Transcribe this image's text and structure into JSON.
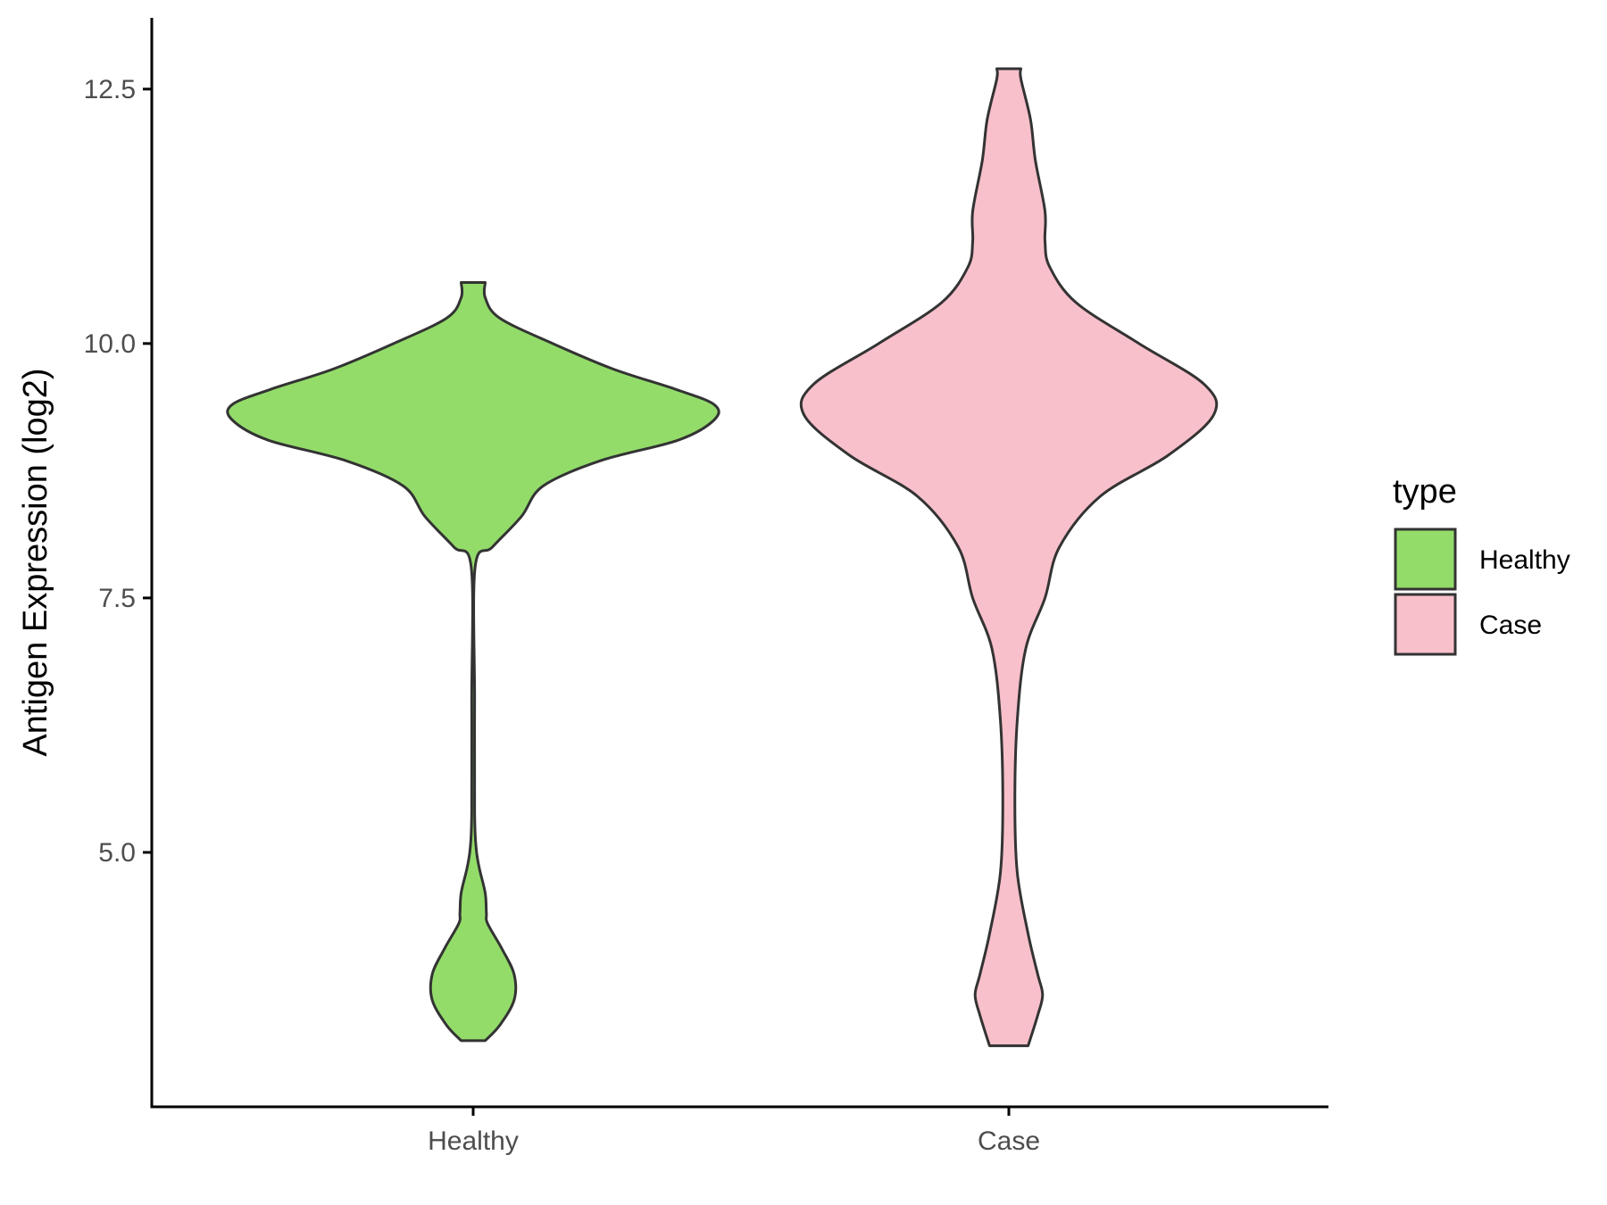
{
  "chart_data": {
    "type": "violin",
    "title": "",
    "xlabel": "",
    "ylabel": "Antigen Expression (log2)",
    "categories": [
      "Healthy",
      "Case"
    ],
    "ylim": [
      2.5,
      13.2
    ],
    "yticks": [
      5.0,
      7.5,
      10.0,
      12.5
    ],
    "ytick_labels": [
      "5.0",
      "7.5",
      "10.0",
      "12.5"
    ],
    "grid": false,
    "legend": {
      "title": "type",
      "position": "right",
      "entries": [
        {
          "label": "Healthy",
          "color": "#93dc6a"
        },
        {
          "label": "Case",
          "color": "#f8c0cb"
        }
      ]
    },
    "series": [
      {
        "category": "Healthy",
        "color": "#93dc6a",
        "density_profile": [
          [
            3.15,
            0.05
          ],
          [
            3.3,
            0.11
          ],
          [
            3.55,
            0.17
          ],
          [
            3.8,
            0.17
          ],
          [
            4.05,
            0.12
          ],
          [
            4.3,
            0.06
          ],
          [
            4.4,
            0.055
          ],
          [
            4.6,
            0.05
          ],
          [
            4.85,
            0.025
          ],
          [
            5.05,
            0.012
          ],
          [
            5.4,
            0.006
          ],
          [
            6.5,
            0.006
          ],
          [
            7.8,
            0.008
          ],
          [
            8.0,
            0.08
          ],
          [
            8.3,
            0.2
          ],
          [
            8.6,
            0.29
          ],
          [
            8.85,
            0.53
          ],
          [
            9.05,
            0.85
          ],
          [
            9.25,
            1.0
          ],
          [
            9.4,
            1.0
          ],
          [
            9.55,
            0.84
          ],
          [
            9.75,
            0.58
          ],
          [
            10.0,
            0.33
          ],
          [
            10.25,
            0.11
          ],
          [
            10.45,
            0.05
          ],
          [
            10.6,
            0.05
          ]
        ]
      },
      {
        "category": "Case",
        "color": "#f8c0cb",
        "density_profile": [
          [
            3.1,
            0.08
          ],
          [
            3.4,
            0.12
          ],
          [
            3.6,
            0.14
          ],
          [
            3.8,
            0.12
          ],
          [
            4.2,
            0.08
          ],
          [
            4.8,
            0.035
          ],
          [
            5.5,
            0.025
          ],
          [
            6.3,
            0.035
          ],
          [
            7.0,
            0.07
          ],
          [
            7.5,
            0.15
          ],
          [
            8.0,
            0.21
          ],
          [
            8.5,
            0.38
          ],
          [
            8.9,
            0.66
          ],
          [
            9.3,
            0.85
          ],
          [
            9.6,
            0.81
          ],
          [
            10.0,
            0.54
          ],
          [
            10.4,
            0.28
          ],
          [
            10.75,
            0.17
          ],
          [
            11.0,
            0.15
          ],
          [
            11.3,
            0.15
          ],
          [
            11.8,
            0.11
          ],
          [
            12.2,
            0.09
          ],
          [
            12.6,
            0.05
          ],
          [
            12.7,
            0.05
          ]
        ]
      }
    ]
  }
}
